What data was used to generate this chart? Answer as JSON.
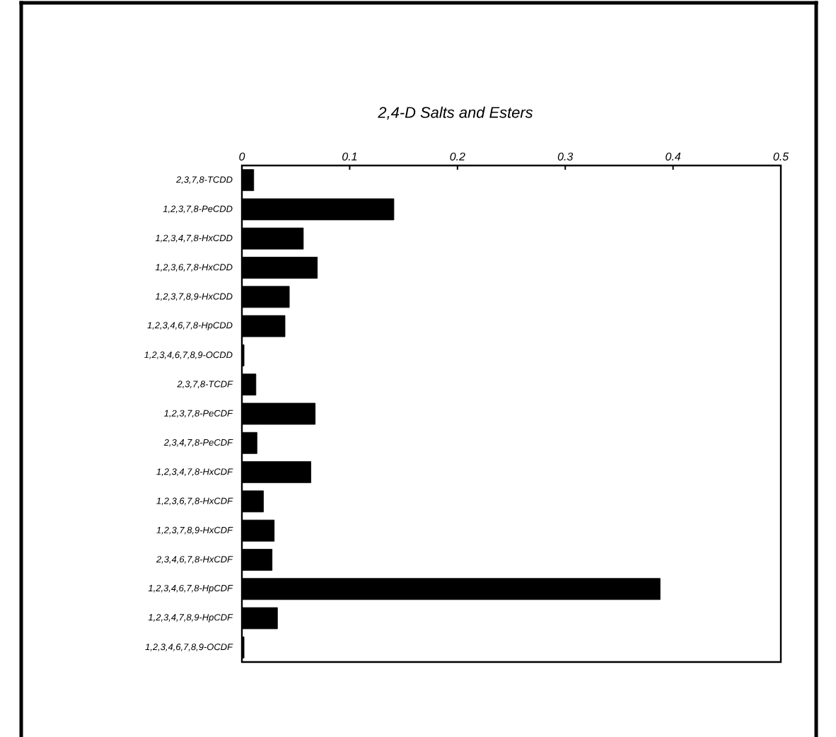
{
  "chart_data": {
    "type": "bar",
    "orientation": "horizontal",
    "title": "2,4-D Salts and Esters",
    "categories": [
      "2,3,7,8-TCDD",
      "1,2,3,7,8-PeCDD",
      "1,2,3,4,7,8-HxCDD",
      "1,2,3,6,7,8-HxCDD",
      "1,2,3,7,8,9-HxCDD",
      "1,2,3,4,6,7,8-HpCDD",
      "1,2,3,4,6,7,8,9-OCDD",
      "2,3,7,8-TCDF",
      "1,2,3,7,8-PeCDF",
      "2,3,4,7,8-PeCDF",
      "1,2,3,4,7,8-HxCDF",
      "1,2,3,6,7,8-HxCDF",
      "1,2,3,7,8,9-HxCDF",
      "2,3,4,6,7,8-HxCDF",
      "1,2,3,4,6,7,8-HpCDF",
      "1,2,3,4,7,8,9-HpCDF",
      "1,2,3,4,6,7,8,9-OCDF"
    ],
    "values": [
      0.011,
      0.141,
      0.057,
      0.07,
      0.044,
      0.04,
      0.002,
      0.013,
      0.068,
      0.014,
      0.064,
      0.02,
      0.03,
      0.028,
      0.388,
      0.033,
      0.002
    ],
    "color": "#000000",
    "xlim": [
      0,
      0.5
    ],
    "xticks": [
      "0",
      0.1,
      0.2,
      0.3,
      0.4,
      0.5
    ],
    "grid": false
  }
}
